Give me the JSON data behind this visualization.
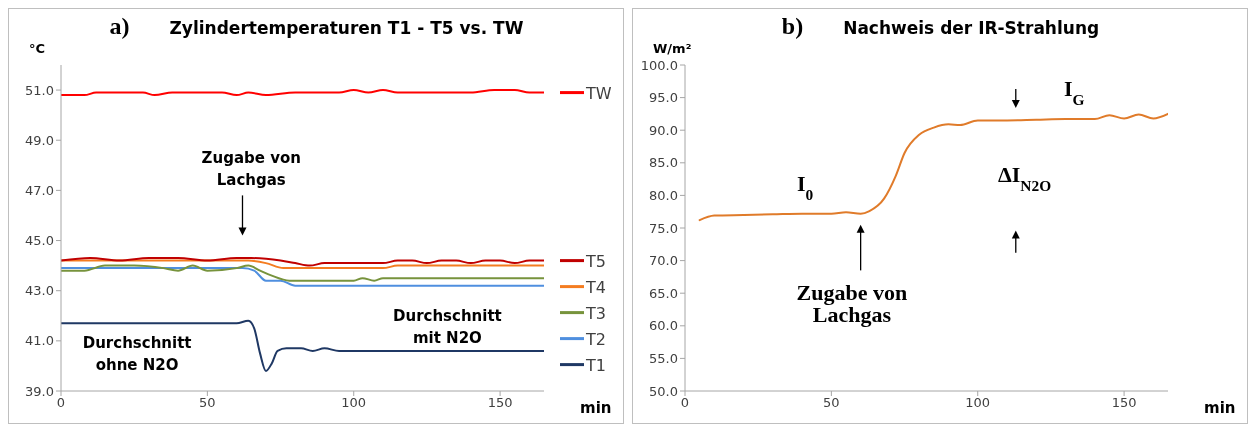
{
  "chart_data": [
    {
      "type": "line",
      "title": "Zylindertemperaturen T1 - T5 vs. TW",
      "ylabel": "°C",
      "xlabel": "min",
      "xlim": [
        0,
        165
      ],
      "xticks": [
        0,
        50,
        100,
        150
      ],
      "ylim": [
        39,
        52
      ],
      "yticks": [
        {
          "value": 39,
          "label": "39.0"
        },
        {
          "value": 41,
          "label": "41.0"
        },
        {
          "value": 43,
          "label": "43.0"
        },
        {
          "value": 45,
          "label": "45.0"
        },
        {
          "value": 47,
          "label": "47.0"
        },
        {
          "value": 49,
          "label": "49.0"
        },
        {
          "value": 51,
          "label": "51.0"
        }
      ],
      "legend": "right",
      "series": [
        {
          "name": "TW",
          "color": "#ff0000",
          "x": [
            0,
            8,
            12,
            20,
            28,
            32,
            38,
            48,
            55,
            60,
            64,
            70,
            80,
            90,
            95,
            100,
            105,
            110,
            115,
            125,
            140,
            148,
            155,
            160,
            165
          ],
          "values": [
            50.8,
            50.8,
            50.9,
            50.9,
            50.9,
            50.8,
            50.9,
            50.9,
            50.9,
            50.8,
            50.9,
            50.8,
            50.9,
            50.9,
            50.9,
            51.0,
            50.9,
            51.0,
            50.9,
            50.9,
            50.9,
            51.0,
            51.0,
            50.9,
            50.9
          ]
        },
        {
          "name": "T5",
          "color": "#c00000",
          "x": [
            0,
            10,
            20,
            30,
            40,
            50,
            60,
            65,
            75,
            80,
            85,
            90,
            100,
            110,
            115,
            120,
            125,
            130,
            135,
            140,
            145,
            150,
            155,
            160,
            165
          ],
          "values": [
            44.2,
            44.3,
            44.2,
            44.3,
            44.3,
            44.2,
            44.3,
            44.3,
            44.2,
            44.1,
            44.0,
            44.1,
            44.1,
            44.1,
            44.2,
            44.2,
            44.1,
            44.2,
            44.2,
            44.1,
            44.2,
            44.2,
            44.1,
            44.2,
            44.2
          ]
        },
        {
          "name": "T4",
          "color": "#f47c20",
          "x": [
            0,
            64,
            70,
            76,
            110,
            115,
            165
          ],
          "values": [
            44.2,
            44.2,
            44.1,
            43.9,
            43.9,
            44.0,
            44.0
          ]
        },
        {
          "name": "T3",
          "color": "#77933c",
          "x": [
            0,
            8,
            15,
            25,
            35,
            40,
            45,
            50,
            60,
            64,
            68,
            72,
            78,
            100,
            103,
            107,
            110,
            165
          ],
          "values": [
            43.8,
            43.8,
            44.0,
            44.0,
            43.9,
            43.8,
            44.0,
            43.8,
            43.9,
            44.0,
            43.8,
            43.6,
            43.4,
            43.4,
            43.5,
            43.4,
            43.5,
            43.5
          ]
        },
        {
          "name": "T2",
          "color": "#4f8fdf",
          "x": [
            0,
            62,
            66,
            70,
            75,
            80,
            165
          ],
          "values": [
            43.9,
            43.9,
            43.8,
            43.4,
            43.4,
            43.2,
            43.2
          ]
        },
        {
          "name": "T1",
          "color": "#1f3864",
          "x": [
            0,
            60,
            64,
            66,
            68,
            70,
            72,
            74,
            77,
            82,
            86,
            90,
            95,
            165
          ],
          "values": [
            41.7,
            41.7,
            41.8,
            41.5,
            40.5,
            39.8,
            40.1,
            40.6,
            40.7,
            40.7,
            40.6,
            40.7,
            40.6,
            40.6
          ]
        }
      ],
      "annotations": [
        "a)",
        "Zugabe von\nLachgas",
        "Durchschnitt\nohne N2O",
        "Durchschnitt\nmit N2O"
      ]
    },
    {
      "type": "line",
      "title": "Nachweis der IR-Strahlung",
      "ylabel": "W/m²",
      "xlabel": "min",
      "xlim": [
        0,
        165
      ],
      "xticks": [
        0,
        50,
        100,
        150
      ],
      "ylim": [
        50,
        100
      ],
      "yticks": [
        {
          "value": 50,
          "label": "50.0"
        },
        {
          "value": 55,
          "label": "55.0"
        },
        {
          "value": 60,
          "label": "60.0"
        },
        {
          "value": 65,
          "label": "65.0"
        },
        {
          "value": 70,
          "label": "70.0"
        },
        {
          "value": 75,
          "label": "75.0"
        },
        {
          "value": 80,
          "label": "80.0"
        },
        {
          "value": 85,
          "label": "85.0"
        },
        {
          "value": 90,
          "label": "90.0"
        },
        {
          "value": 95,
          "label": "95.0"
        },
        {
          "value": 100,
          "label": "100.0"
        }
      ],
      "series": [
        {
          "color": "#e07b2a",
          "x": [
            5,
            10,
            20,
            30,
            40,
            50,
            55,
            60,
            63,
            68,
            72,
            75,
            80,
            85,
            90,
            94,
            100,
            110,
            120,
            130,
            140,
            145,
            150,
            155,
            160,
            165
          ],
          "values": [
            76.2,
            76.9,
            77.0,
            77.1,
            77.2,
            77.2,
            77.4,
            77.2,
            77.6,
            79.5,
            83.0,
            86.5,
            89.3,
            90.4,
            90.9,
            90.8,
            91.5,
            91.5,
            91.6,
            91.7,
            91.7,
            92.3,
            91.8,
            92.4,
            91.8,
            92.5
          ]
        }
      ],
      "annotations": [
        "b)",
        "I$_{0}$",
        "I$_{G}$",
        "ΔI$_{N2O}$",
        "Zugabe von\nLachgas"
      ]
    }
  ]
}
